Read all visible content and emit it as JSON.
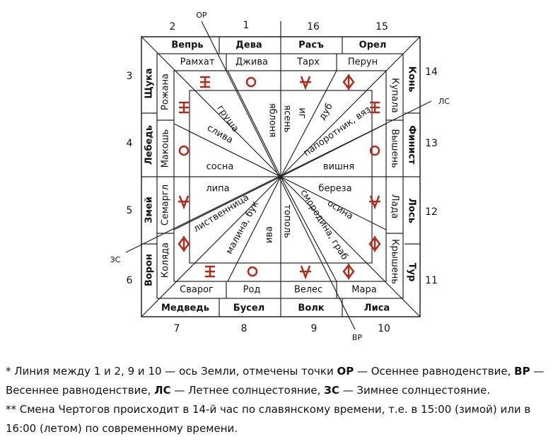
{
  "sides": {
    "top": {
      "numbers": [
        "2",
        "1",
        "16",
        "15"
      ],
      "animals": [
        "Вепрь",
        "Дева",
        "Расъ",
        "Орел"
      ],
      "gods": [
        "Рамхат",
        "Джива",
        "Тарх",
        "Перун"
      ]
    },
    "left": {
      "numbers": [
        "3",
        "4",
        "5",
        "6"
      ],
      "animals": [
        "Щука",
        "Лебедь",
        "Змей",
        "Ворон"
      ],
      "gods": [
        "Рожана",
        "Макошь",
        "Семаргл",
        "Коляда"
      ]
    },
    "right": {
      "numbers": [
        "14",
        "13",
        "12",
        "11"
      ],
      "animals": [
        "Конь",
        "Финист",
        "Лось",
        "Тур"
      ],
      "gods": [
        "Купала",
        "Вышень",
        "Лада",
        "Крышень"
      ]
    },
    "bottom": {
      "numbers": [
        "7",
        "8",
        "9",
        "10"
      ],
      "animals": [
        "Медведь",
        "Бусел",
        "Волк",
        "Лиса"
      ],
      "gods": [
        "Сварог",
        "Род",
        "Велес",
        "Мара"
      ]
    }
  },
  "trees": [
    "груша",
    "слива",
    "сосна",
    "липа",
    "лиственница",
    "малина, бук",
    "ива",
    "тополь",
    "смородина, граб",
    "осина",
    "береза",
    "вишня",
    "папоротник, вяз",
    "дуб",
    "иг",
    "ясень",
    "яблоня"
  ],
  "axis_points": [
    "ОР",
    "ВР",
    "ЛС",
    "ЗС"
  ],
  "notes": [
    [
      "* Линия между 1 и 2, 9 и 10 — ось Земли, отмечены точки ",
      "ОР",
      " — Осеннее равноденствие, ",
      "ВР",
      " — Весеннее равноденствие, ",
      "ЛС",
      " — Летнее солнцестояние, ",
      "ЗС",
      " — Зимнее солнцестояние."
    ],
    [
      "** Смена Чертогов происходит в 14-й час по славянскому времени, т.е. в 15:00 (зимой) или в 16:00 (летом) по современному времени."
    ]
  ]
}
